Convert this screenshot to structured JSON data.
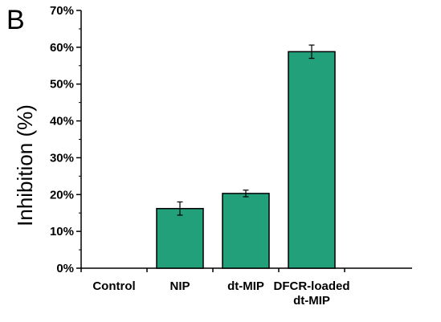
{
  "panel_label": "B",
  "chart_data": {
    "type": "bar",
    "categories": [
      "Control",
      "NIP",
      "dt-MIP",
      "DFCR-loaded dt-MIP"
    ],
    "category_lines": [
      [
        "Control"
      ],
      [
        "NIP"
      ],
      [
        "dt-MIP"
      ],
      [
        "DFCR-loaded",
        "dt-MIP"
      ]
    ],
    "values": [
      0,
      16.2,
      20.3,
      58.8
    ],
    "errors": [
      0,
      1.8,
      0.9,
      1.8
    ],
    "ylabel": "Inhibition (%)",
    "xlabel": "",
    "ylim": [
      0,
      70
    ],
    "yticks": [
      0,
      10,
      20,
      30,
      40,
      50,
      60,
      70
    ],
    "ytick_labels": [
      "0%",
      "10%",
      "20%",
      "30%",
      "40%",
      "50%",
      "60%",
      "70%"
    ],
    "bar_color": "#22a07a",
    "grid": false
  }
}
